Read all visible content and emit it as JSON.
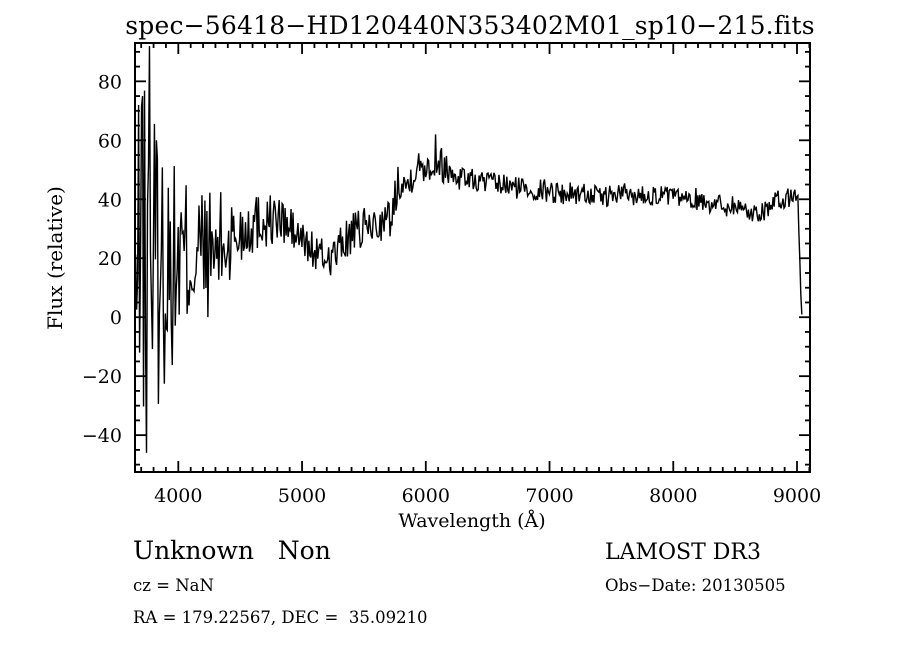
{
  "accent_colors": {
    "foreground": "#000000",
    "background": "#ffffff"
  },
  "header": {
    "title": "spec−56418−HD120440N353402M01_sp10−215.fits"
  },
  "annotations": {
    "class_label": "Unknown   Non",
    "cz": "cz = NaN",
    "ra_dec": "RA = 179.22567, DEC =  35.09210",
    "survey": "LAMOST DR3",
    "obs_date": "Obs−Date: 20130505"
  },
  "chart_data": {
    "type": "line",
    "title": "spec−56418−HD120440N353402M01_sp10−215.fits",
    "xlabel": "Wavelength (Å)",
    "ylabel": "Flux (relative)",
    "xlim": [
      3650,
      9105
    ],
    "ylim": [
      -52.5,
      93
    ],
    "grid": false,
    "legend": "none",
    "line_color": "#000000",
    "x_major_ticks": [
      4000,
      5000,
      6000,
      7000,
      8000,
      9000
    ],
    "x_tick_labels": [
      "4000",
      "5000",
      "6000",
      "7000",
      "8000",
      "9000"
    ],
    "x_minor_step": 100,
    "y_major_ticks": [
      -40,
      -20,
      0,
      20,
      40,
      60,
      80
    ],
    "y_tick_labels": [
      "−40",
      "−20",
      "0",
      "20",
      "40",
      "60",
      "80"
    ],
    "y_minor_step": 5,
    "series": [
      {
        "name": "spectrum",
        "description": "Noisy flux profile given as [wavelength_A, mean_flux, noise_half_amplitude]",
        "sample_step": 8,
        "noise_seed": 13,
        "profile": [
          [
            3655,
            5,
            45
          ],
          [
            3670,
            15,
            55
          ],
          [
            3700,
            20,
            62
          ],
          [
            3730,
            20,
            65
          ],
          [
            3760,
            20,
            68
          ],
          [
            3800,
            18,
            55
          ],
          [
            3840,
            15,
            48
          ],
          [
            3880,
            18,
            42
          ],
          [
            3920,
            16,
            38
          ],
          [
            3960,
            18,
            34
          ],
          [
            4000,
            19,
            31
          ],
          [
            4050,
            20,
            29
          ],
          [
            4100,
            21,
            27
          ],
          [
            4150,
            21,
            26
          ],
          [
            4200,
            22,
            24
          ],
          [
            4250,
            21,
            22
          ],
          [
            4300,
            22,
            21
          ],
          [
            4350,
            24,
            19
          ],
          [
            4400,
            25,
            18
          ],
          [
            4450,
            27,
            16
          ],
          [
            4500,
            29,
            14
          ],
          [
            4550,
            31,
            12
          ],
          [
            4600,
            32,
            11
          ],
          [
            4650,
            33,
            10
          ],
          [
            4700,
            33,
            10
          ],
          [
            4750,
            33,
            9
          ],
          [
            4800,
            33,
            9
          ],
          [
            4850,
            32,
            9
          ],
          [
            4900,
            30,
            8
          ],
          [
            4950,
            28,
            8
          ],
          [
            5000,
            26,
            7
          ],
          [
            5050,
            24,
            7
          ],
          [
            5100,
            22,
            7
          ],
          [
            5150,
            21,
            6
          ],
          [
            5200,
            20,
            6
          ],
          [
            5250,
            21,
            7
          ],
          [
            5300,
            23,
            7
          ],
          [
            5350,
            26,
            7
          ],
          [
            5400,
            28,
            7
          ],
          [
            5450,
            29,
            7
          ],
          [
            5500,
            30,
            7
          ],
          [
            5550,
            31,
            7
          ],
          [
            5600,
            31,
            6
          ],
          [
            5650,
            32,
            6
          ],
          [
            5700,
            33,
            7
          ],
          [
            5740,
            36,
            9
          ],
          [
            5770,
            46,
            8
          ],
          [
            5800,
            48,
            7
          ],
          [
            5850,
            44,
            7
          ],
          [
            5900,
            50,
            6
          ],
          [
            5950,
            51,
            6
          ],
          [
            6000,
            52,
            6
          ],
          [
            6050,
            52,
            7
          ],
          [
            6100,
            53,
            6
          ],
          [
            6150,
            51,
            6
          ],
          [
            6200,
            49,
            5
          ],
          [
            6250,
            48,
            5
          ],
          [
            6300,
            48,
            5
          ],
          [
            6350,
            47,
            4
          ],
          [
            6400,
            46,
            4
          ],
          [
            6450,
            46,
            4
          ],
          [
            6500,
            46,
            4
          ],
          [
            6550,
            45,
            4
          ],
          [
            6600,
            45,
            4
          ],
          [
            6700,
            44,
            4
          ],
          [
            6800,
            44,
            4
          ],
          [
            6900,
            43,
            4
          ],
          [
            7000,
            43,
            4
          ],
          [
            7100,
            42,
            4
          ],
          [
            7200,
            42,
            4
          ],
          [
            7300,
            42,
            4
          ],
          [
            7400,
            41,
            3
          ],
          [
            7500,
            41,
            4
          ],
          [
            7600,
            42,
            4
          ],
          [
            7700,
            41,
            3
          ],
          [
            7800,
            42,
            4
          ],
          [
            7900,
            41,
            4
          ],
          [
            8000,
            41,
            3
          ],
          [
            8100,
            40,
            3
          ],
          [
            8200,
            40,
            4
          ],
          [
            8300,
            39,
            4
          ],
          [
            8400,
            38,
            4
          ],
          [
            8500,
            38,
            4
          ],
          [
            8600,
            36,
            4
          ],
          [
            8650,
            35,
            4
          ],
          [
            8700,
            36,
            4
          ],
          [
            8800,
            38,
            4
          ],
          [
            8900,
            40,
            4
          ],
          [
            8960,
            41,
            3
          ],
          [
            9000,
            41,
            3
          ],
          [
            9010,
            40,
            2
          ],
          [
            9020,
            25,
            8
          ],
          [
            9030,
            8,
            4
          ],
          [
            9040,
            1,
            1
          ]
        ],
        "notable_spikes": [
          [
            3712,
            75
          ],
          [
            3745,
            -46
          ],
          [
            3768,
            92
          ],
          [
            3820,
            60
          ],
          [
            6080,
            62
          ]
        ]
      }
    ]
  }
}
